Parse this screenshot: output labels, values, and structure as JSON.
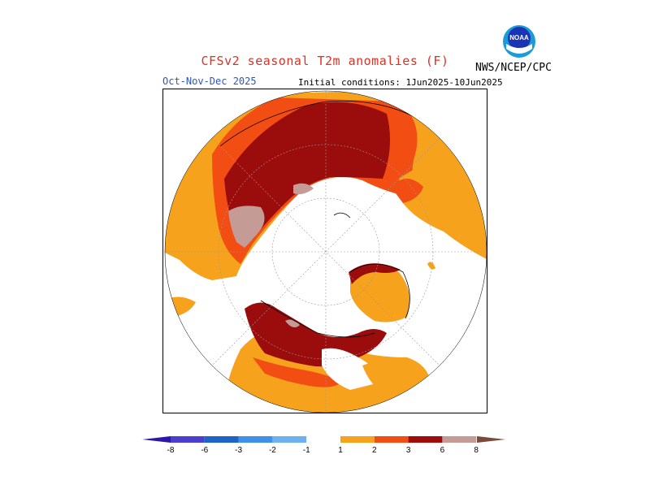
{
  "header": {
    "title": "CFSv2 seasonal T2m anomalies (F)",
    "period": "Oct-Nov-Dec 2025",
    "initial_conditions": "Initial conditions: 1Jun2025-10Jun2025",
    "organization": "NWS/NCEP/CPC",
    "logo_text": "NOAA"
  },
  "colors": {
    "bg_map": "#ffffff",
    "orange": "#f7a21d",
    "red_orange": "#f24d12",
    "dark_red": "#a00c0c",
    "maroon": "#9b0c0c",
    "pink_gray": "#c59c95",
    "brown": "#7a4a3a"
  },
  "colorbar": {
    "labels": [
      "-8",
      "-6",
      "-3",
      "-2",
      "-1",
      "1",
      "2",
      "3",
      "6",
      "8"
    ],
    "colors": [
      "#2c17a8",
      "#4a3fd0",
      "#1e64c8",
      "#3e90e8",
      "#6fb0f0",
      "#ffffff",
      "#f7a21d",
      "#f24d12",
      "#a00c0c",
      "#c59c95",
      "#7a4a3a"
    ]
  }
}
